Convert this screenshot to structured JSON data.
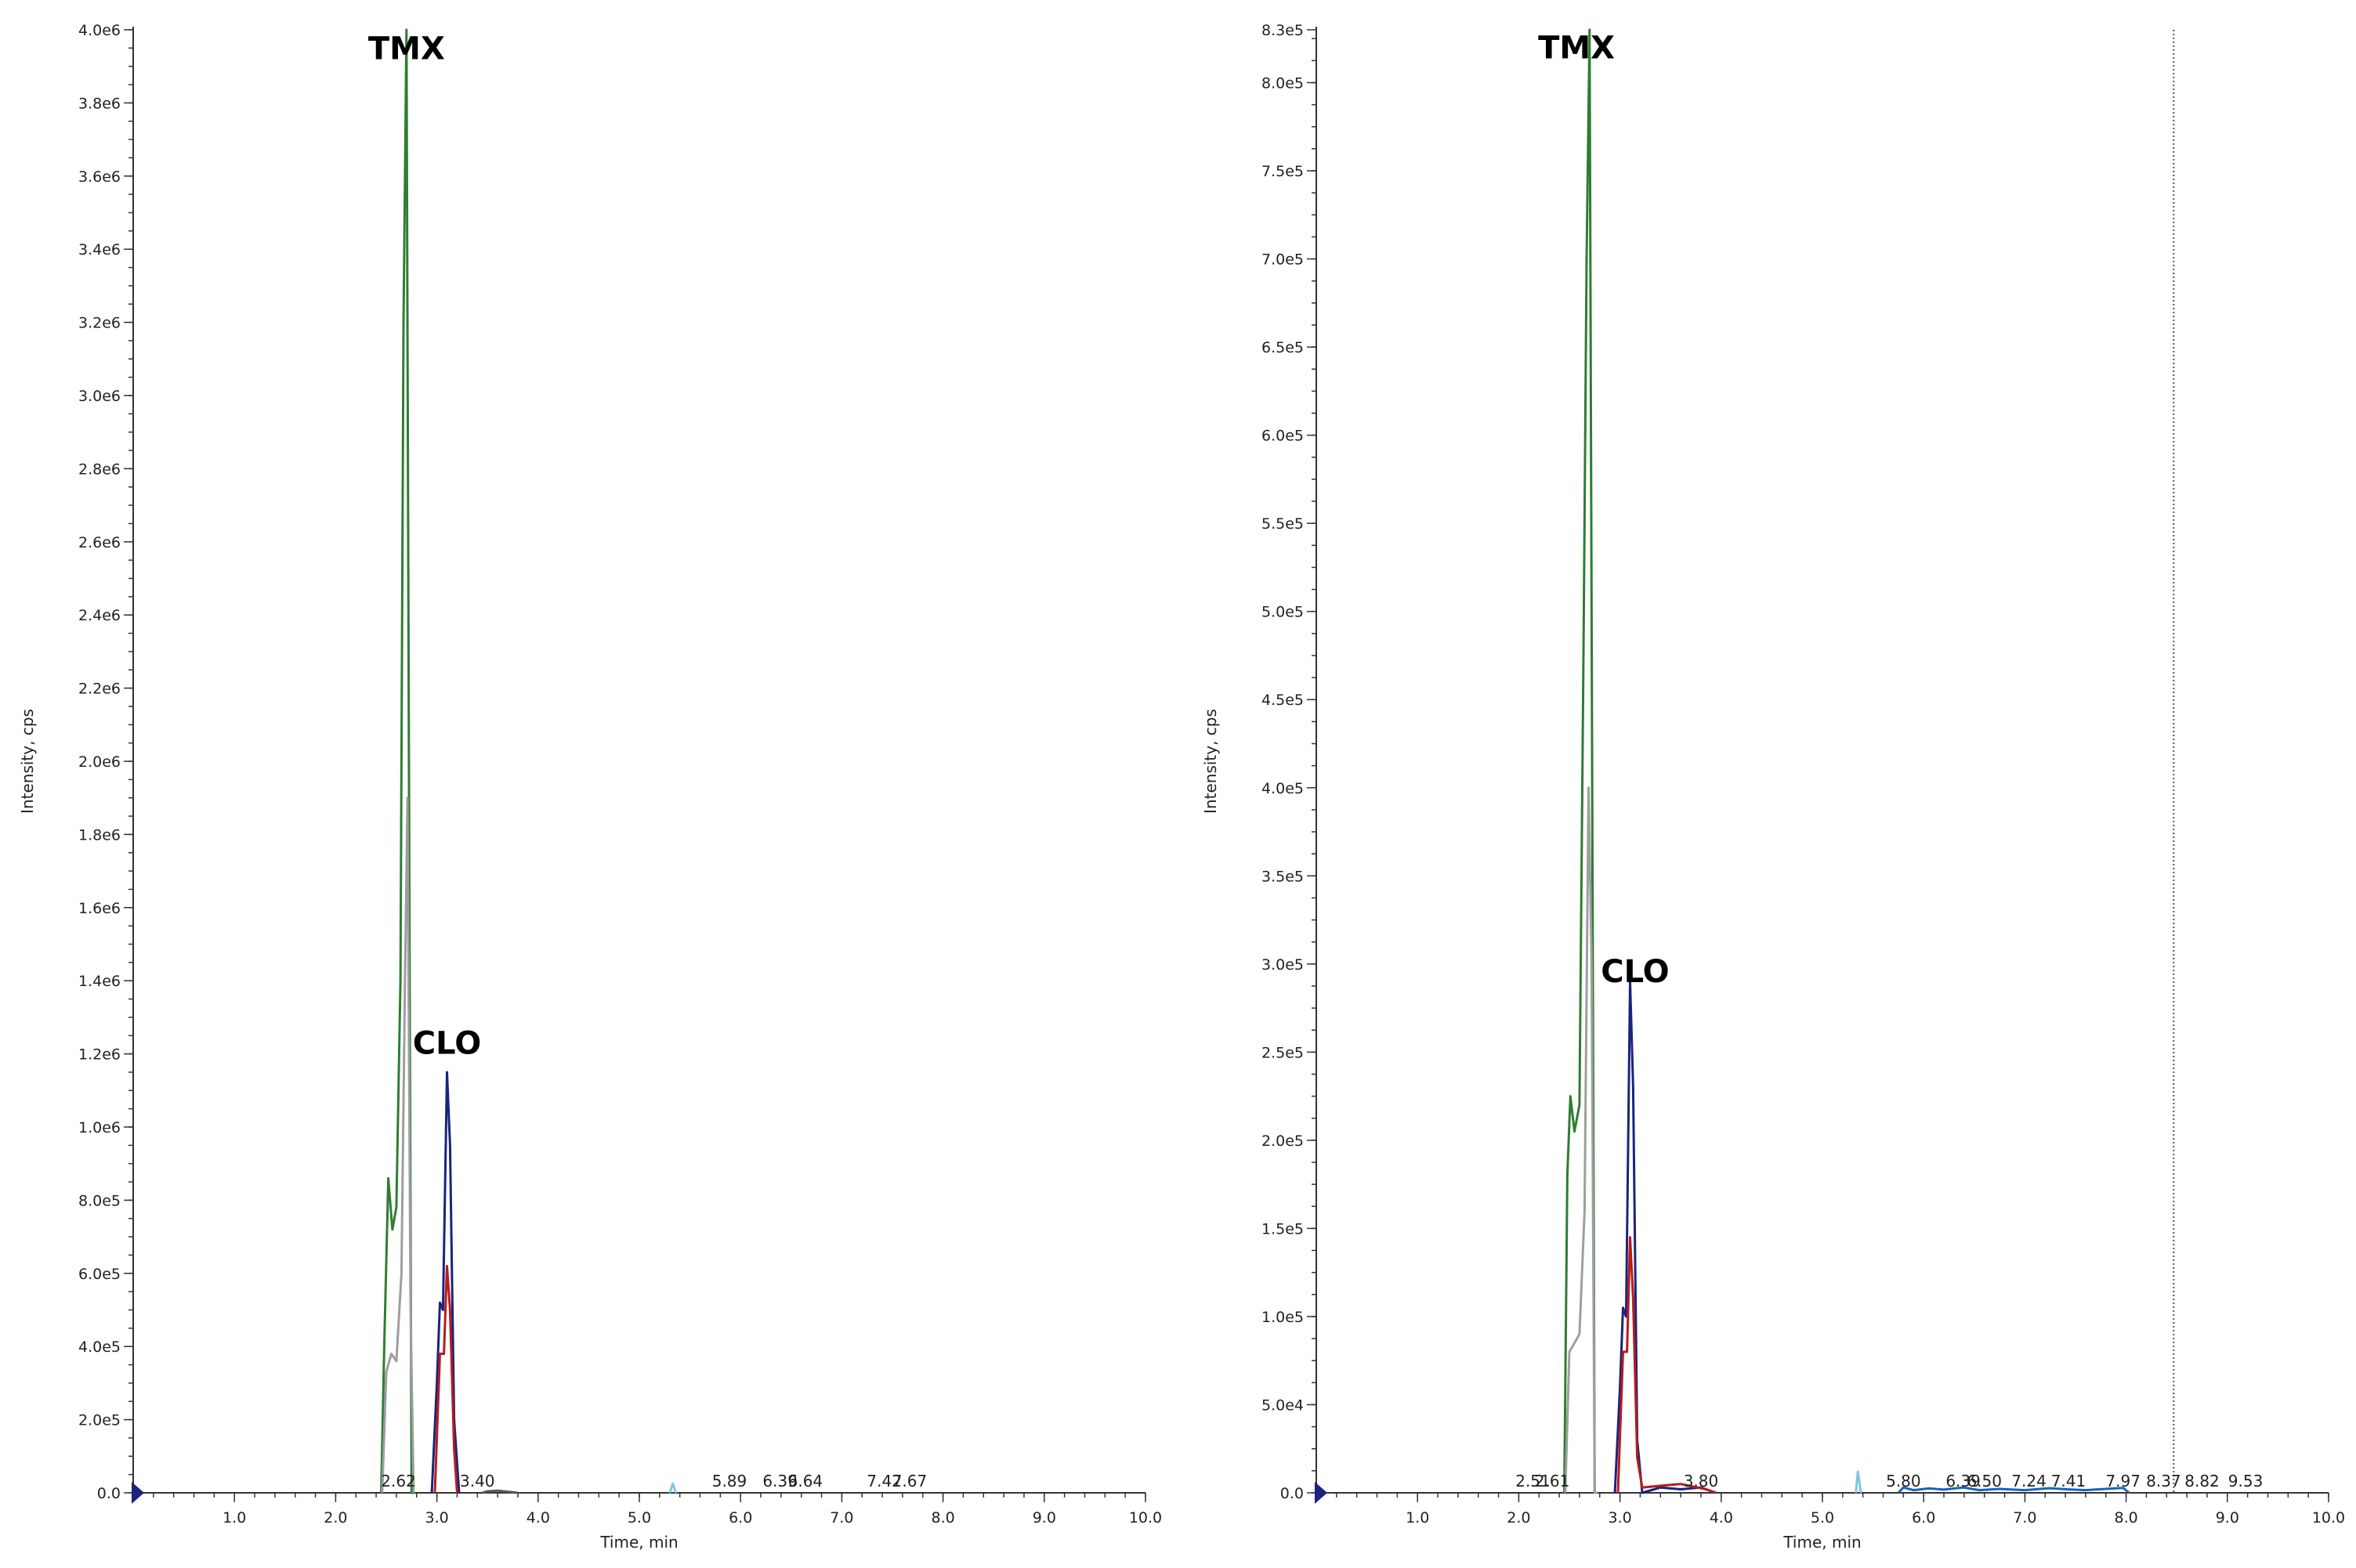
{
  "chart_data": [
    {
      "type": "line",
      "xlabel": "Time, min",
      "ylabel": "Intensity, cps",
      "xlim": [
        0,
        10
      ],
      "ylim": [
        0,
        4000000
      ],
      "x_ticks": [
        "1.0",
        "2.0",
        "3.0",
        "4.0",
        "5.0",
        "6.0",
        "7.0",
        "8.0",
        "9.0",
        "10.0"
      ],
      "y_ticks": [
        {
          "v": 0,
          "label": "0.0"
        },
        {
          "v": 200000,
          "label": "2.0e5"
        },
        {
          "v": 400000,
          "label": "4.0e5"
        },
        {
          "v": 600000,
          "label": "6.0e5"
        },
        {
          "v": 800000,
          "label": "8.0e5"
        },
        {
          "v": 1000000,
          "label": "1.0e6"
        },
        {
          "v": 1200000,
          "label": "1.2e6"
        },
        {
          "v": 1400000,
          "label": "1.4e6"
        },
        {
          "v": 1600000,
          "label": "1.6e6"
        },
        {
          "v": 1800000,
          "label": "1.8e6"
        },
        {
          "v": 2000000,
          "label": "2.0e6"
        },
        {
          "v": 2200000,
          "label": "2.2e6"
        },
        {
          "v": 2400000,
          "label": "2.4e6"
        },
        {
          "v": 2600000,
          "label": "2.6e6"
        },
        {
          "v": 2800000,
          "label": "2.8e6"
        },
        {
          "v": 3000000,
          "label": "3.0e6"
        },
        {
          "v": 3200000,
          "label": "3.2e6"
        },
        {
          "v": 3400000,
          "label": "3.4e6"
        },
        {
          "v": 3600000,
          "label": "3.6e6"
        },
        {
          "v": 3800000,
          "label": "3.8e6"
        },
        {
          "v": 4000000,
          "label": "4.0e6"
        }
      ],
      "annotations": [
        {
          "text": "TMX",
          "x": 2.7,
          "y": 3950000
        },
        {
          "text": "CLO",
          "x": 3.1,
          "y": 1230000
        }
      ],
      "peak_labels": [
        {
          "text": "2.62",
          "x": 2.62
        },
        {
          "text": "3.40",
          "x": 3.4
        },
        {
          "text": "5.89",
          "x": 5.89
        },
        {
          "text": "6.39",
          "x": 6.39
        },
        {
          "text": "6.64",
          "x": 6.64
        },
        {
          "text": "7.42",
          "x": 7.42
        },
        {
          "text": "7.67",
          "x": 7.67
        }
      ],
      "series": [
        {
          "color": "#2e7d32",
          "points": [
            [
              2.45,
              0
            ],
            [
              2.48,
              400000
            ],
            [
              2.52,
              860000
            ],
            [
              2.56,
              720000
            ],
            [
              2.6,
              780000
            ],
            [
              2.64,
              1400000
            ],
            [
              2.67,
              3200000
            ],
            [
              2.7,
              4000000
            ],
            [
              2.73,
              1500000
            ],
            [
              2.75,
              0
            ],
            [
              2.78,
              0
            ]
          ]
        },
        {
          "color": "#9e9e9e",
          "points": [
            [
              2.46,
              0
            ],
            [
              2.5,
              330000
            ],
            [
              2.55,
              380000
            ],
            [
              2.6,
              360000
            ],
            [
              2.65,
              600000
            ],
            [
              2.68,
              1300000
            ],
            [
              2.71,
              1900000
            ],
            [
              2.74,
              500000
            ],
            [
              2.77,
              0
            ]
          ]
        },
        {
          "color": "#1a237e",
          "points": [
            [
              2.95,
              0
            ],
            [
              3.0,
              300000
            ],
            [
              3.03,
              520000
            ],
            [
              3.06,
              500000
            ],
            [
              3.1,
              1150000
            ],
            [
              3.13,
              950000
            ],
            [
              3.17,
              200000
            ],
            [
              3.22,
              0
            ]
          ]
        },
        {
          "color": "#b71c1c",
          "points": [
            [
              2.98,
              0
            ],
            [
              3.03,
              380000
            ],
            [
              3.07,
              380000
            ],
            [
              3.1,
              620000
            ],
            [
              3.13,
              500000
            ],
            [
              3.17,
              120000
            ],
            [
              3.2,
              0
            ]
          ]
        },
        {
          "color": "#555555",
          "points": [
            [
              3.45,
              0
            ],
            [
              3.5,
              4000
            ],
            [
              3.6,
              6000
            ],
            [
              3.7,
              3000
            ],
            [
              3.8,
              0
            ]
          ]
        },
        {
          "color": "#7ec8e3",
          "points": [
            [
              5.3,
              0
            ],
            [
              5.33,
              25000
            ],
            [
              5.36,
              0
            ]
          ]
        }
      ]
    },
    {
      "type": "line",
      "xlabel": "Time, min",
      "ylabel": "Intensity, cps",
      "xlim": [
        0,
        10
      ],
      "ylim": [
        0,
        830000
      ],
      "x_ticks": [
        "1.0",
        "2.0",
        "3.0",
        "4.0",
        "5.0",
        "6.0",
        "7.0",
        "8.0",
        "9.0",
        "10.0"
      ],
      "y_ticks": [
        {
          "v": 0,
          "label": "0.0"
        },
        {
          "v": 50000,
          "label": "5.0e4"
        },
        {
          "v": 100000,
          "label": "1.0e5"
        },
        {
          "v": 150000,
          "label": "1.5e5"
        },
        {
          "v": 200000,
          "label": "2.0e5"
        },
        {
          "v": 250000,
          "label": "2.5e5"
        },
        {
          "v": 300000,
          "label": "3.0e5"
        },
        {
          "v": 350000,
          "label": "3.5e5"
        },
        {
          "v": 400000,
          "label": "4.0e5"
        },
        {
          "v": 450000,
          "label": "4.5e5"
        },
        {
          "v": 500000,
          "label": "5.0e5"
        },
        {
          "v": 550000,
          "label": "5.5e5"
        },
        {
          "v": 600000,
          "label": "6.0e5"
        },
        {
          "v": 650000,
          "label": "6.5e5"
        },
        {
          "v": 700000,
          "label": "7.0e5"
        },
        {
          "v": 750000,
          "label": "7.5e5"
        },
        {
          "v": 800000,
          "label": "8.0e5"
        },
        {
          "v": 830000,
          "label": "8.3e5"
        }
      ],
      "vline_x": 8.47,
      "annotations": [
        {
          "text": "TMX",
          "x": 2.57,
          "y": 820000
        },
        {
          "text": "CLO",
          "x": 3.15,
          "y": 296000
        }
      ],
      "peak_labels": [
        {
          "text": "2.51",
          "x": 2.14
        },
        {
          "text": "2.61",
          "x": 2.33
        },
        {
          "text": "3.80",
          "x": 3.8
        },
        {
          "text": "5.80",
          "x": 5.8
        },
        {
          "text": "6.39",
          "x": 6.39
        },
        {
          "text": "6.50",
          "x": 6.6
        },
        {
          "text": "7.24",
          "x": 7.04
        },
        {
          "text": "7.41",
          "x": 7.43
        },
        {
          "text": "7.97",
          "x": 7.97
        },
        {
          "text": "8.37",
          "x": 8.37
        },
        {
          "text": "8.82",
          "x": 8.75
        },
        {
          "text": "9.53",
          "x": 9.18
        }
      ],
      "series": [
        {
          "color": "#2e7d32",
          "points": [
            [
              2.45,
              0
            ],
            [
              2.48,
              180000
            ],
            [
              2.51,
              225000
            ],
            [
              2.55,
              205000
            ],
            [
              2.6,
              220000
            ],
            [
              2.64,
              480000
            ],
            [
              2.67,
              700000
            ],
            [
              2.7,
              830000
            ],
            [
              2.73,
              330000
            ],
            [
              2.75,
              0
            ],
            [
              2.78,
              0
            ]
          ]
        },
        {
          "color": "#9e9e9e",
          "points": [
            [
              2.46,
              0
            ],
            [
              2.5,
              80000
            ],
            [
              2.55,
              85000
            ],
            [
              2.6,
              90000
            ],
            [
              2.65,
              160000
            ],
            [
              2.69,
              400000
            ],
            [
              2.72,
              300000
            ],
            [
              2.75,
              0
            ],
            [
              2.78,
              0
            ]
          ]
        },
        {
          "color": "#1a237e",
          "points": [
            [
              2.95,
              0
            ],
            [
              3.0,
              60000
            ],
            [
              3.03,
              105000
            ],
            [
              3.06,
              100000
            ],
            [
              3.1,
              290000
            ],
            [
              3.13,
              230000
            ],
            [
              3.17,
              30000
            ],
            [
              3.22,
              0
            ],
            [
              3.4,
              3000
            ],
            [
              3.6,
              2000
            ],
            [
              3.8,
              3000
            ],
            [
              3.95,
              0
            ]
          ]
        },
        {
          "color": "#b71c1c",
          "points": [
            [
              2.98,
              0
            ],
            [
              3.03,
              80000
            ],
            [
              3.07,
              80000
            ],
            [
              3.1,
              145000
            ],
            [
              3.13,
              110000
            ],
            [
              3.17,
              20000
            ],
            [
              3.22,
              3000
            ],
            [
              3.4,
              4000
            ],
            [
              3.6,
              5000
            ],
            [
              3.85,
              2000
            ],
            [
              3.95,
              0
            ]
          ]
        },
        {
          "color": "#1565c0",
          "points": [
            [
              5.75,
              0
            ],
            [
              5.8,
              3000
            ],
            [
              5.9,
              1500
            ],
            [
              6.05,
              2500
            ],
            [
              6.2,
              1800
            ],
            [
              6.39,
              3000
            ],
            [
              6.55,
              1500
            ],
            [
              6.75,
              2200
            ],
            [
              7.0,
              1500
            ],
            [
              7.24,
              2600
            ],
            [
              7.41,
              2000
            ],
            [
              7.6,
              1500
            ],
            [
              7.8,
              2200
            ],
            [
              7.97,
              2800
            ],
            [
              8.03,
              0
            ]
          ]
        },
        {
          "color": "#7ec8e3",
          "points": [
            [
              5.33,
              0
            ],
            [
              5.35,
              12000
            ],
            [
              5.38,
              0
            ]
          ]
        }
      ]
    }
  ]
}
